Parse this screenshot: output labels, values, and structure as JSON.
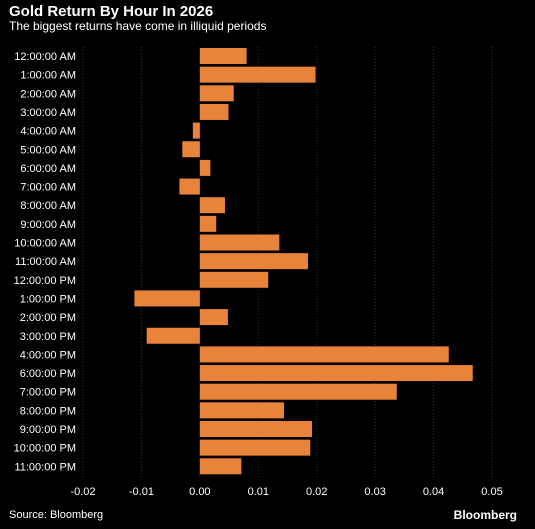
{
  "header": {
    "title": "Gold Return By Hour In 2026",
    "subtitle": "The biggest returns have come in illiquid periods"
  },
  "footer": {
    "source": "Source: Bloomberg",
    "brand": "Bloomberg"
  },
  "colors": {
    "bar": "#e8833a",
    "background": "#000000",
    "grid": "#333333"
  },
  "chart_data": {
    "type": "bar",
    "orientation": "horizontal",
    "categories": [
      "12:00:00 AM",
      "1:00:00 AM",
      "2:00:00 AM",
      "3:00:00 AM",
      "4:00:00 AM",
      "5:00:00 AM",
      "6:00:00 AM",
      "7:00:00 AM",
      "8:00:00 AM",
      "9:00:00 AM",
      "10:00:00 AM",
      "11:00:00 AM",
      "12:00:00 PM",
      "1:00:00 PM",
      "2:00:00 PM",
      "3:00:00 PM",
      "4:00:00 PM",
      "6:00:00 PM",
      "7:00:00 PM",
      "8:00:00 PM",
      "9:00:00 PM",
      "10:00:00 PM",
      "11:00:00 PM"
    ],
    "values": [
      0.008,
      0.0198,
      0.0058,
      0.0049,
      -0.0012,
      -0.003,
      0.0018,
      -0.0035,
      0.0043,
      0.0028,
      0.0136,
      0.0185,
      0.0117,
      -0.0112,
      0.0048,
      -0.0091,
      0.0426,
      0.0467,
      0.0337,
      0.0144,
      0.0192,
      0.0189,
      0.0071
    ],
    "xlim": [
      -0.02,
      0.05
    ],
    "xticks": [
      "-0.02",
      "-0.01",
      "0.00",
      "0.01",
      "0.02",
      "0.03",
      "0.04",
      "0.05"
    ],
    "grid": true
  }
}
